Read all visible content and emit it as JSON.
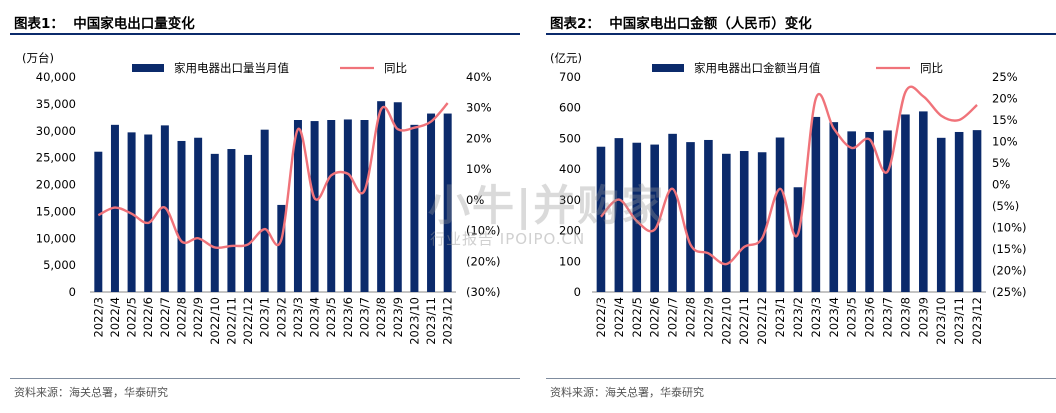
{
  "panels": [
    {
      "title": "图表1：  中国家电出口量变化",
      "source": "资料来源：海关总署，华泰研究"
    },
    {
      "title": "图表2：  中国家电出口金额（人民币）变化",
      "source": "资料来源：海关总署，华泰研究"
    }
  ],
  "watermark": {
    "logo": "小牛|并购家",
    "sub": "行业报告 IPOIPO.CN"
  },
  "colors": {
    "bar": "#0b2a6b",
    "line": "#f0737a"
  },
  "chart_data": [
    {
      "type": "bar",
      "title": "",
      "unit_label": "(万台)",
      "categories": [
        "2022/3",
        "2022/4",
        "2022/5",
        "2022/6",
        "2022/7",
        "2022/8",
        "2022/9",
        "2022/10",
        "2022/11",
        "2022/12",
        "2023/1",
        "2023/2",
        "2023/3",
        "2023/4",
        "2023/5",
        "2023/6",
        "2023/7",
        "2023/8",
        "2023/9",
        "2023/10",
        "2023/11",
        "2023/12"
      ],
      "series": [
        {
          "name": "家用电器出口量当月值",
          "type": "bar",
          "axis": "left",
          "values": [
            26100,
            31100,
            29700,
            29300,
            31000,
            28100,
            28700,
            25700,
            26600,
            25500,
            30200,
            16200,
            32000,
            31800,
            32000,
            32100,
            32000,
            35500,
            35300,
            31100,
            33200,
            33200
          ]
        },
        {
          "name": "同比",
          "type": "line",
          "axis": "right",
          "values": [
            -5.0,
            -2.5,
            -4.5,
            -7.5,
            -2.5,
            -13.5,
            -12.5,
            -15.5,
            -15.0,
            -14.5,
            -9.5,
            -13.0,
            23.0,
            0.5,
            8.0,
            8.5,
            3.0,
            29.5,
            23.0,
            23.5,
            25.5,
            31.5
          ]
        }
      ],
      "ylim_left": [
        0,
        40000
      ],
      "ylim_right": [
        -30,
        40
      ],
      "yticks_left": [
        "0",
        "5,000",
        "10,000",
        "15,000",
        "20,000",
        "25,000",
        "30,000",
        "35,000",
        "40,000"
      ],
      "yticks_right": [
        "(30%)",
        "(20%)",
        "(10%)",
        "0%",
        "10%",
        "20%",
        "30%",
        "40%"
      ],
      "legend_position": "top"
    },
    {
      "type": "bar",
      "title": "",
      "unit_label": "(亿元)",
      "categories": [
        "2022/3",
        "2022/4",
        "2022/5",
        "2022/6",
        "2022/7",
        "2022/8",
        "2022/9",
        "2022/10",
        "2022/11",
        "2022/12",
        "2023/1",
        "2023/2",
        "2023/3",
        "2023/4",
        "2023/5",
        "2023/6",
        "2023/7",
        "2023/8",
        "2023/9",
        "2023/10",
        "2023/11",
        "2023/12"
      ],
      "series": [
        {
          "name": "家用电器出口金额当月值",
          "type": "bar",
          "axis": "left",
          "values": [
            473,
            501,
            486,
            480,
            515,
            488,
            495,
            450,
            459,
            455,
            503,
            341,
            570,
            553,
            523,
            521,
            526,
            578,
            588,
            502,
            521,
            527
          ]
        },
        {
          "name": "同比",
          "type": "line",
          "axis": "right",
          "values": [
            -7.5,
            -3.5,
            -8.5,
            -10.5,
            -1.0,
            -14.0,
            -16.0,
            -18.5,
            -14.5,
            -12.5,
            -1.0,
            -11.5,
            20.0,
            13.0,
            8.5,
            10.5,
            3.0,
            21.5,
            20.5,
            16.0,
            15.0,
            18.5
          ]
        }
      ],
      "ylim_left": [
        0,
        700
      ],
      "ylim_right": [
        -25,
        25
      ],
      "yticks_left": [
        "0",
        "100",
        "200",
        "300",
        "400",
        "500",
        "600",
        "700"
      ],
      "yticks_right": [
        "(25%)",
        "(20%)",
        "(15%)",
        "(10%)",
        "(5%)",
        "0%",
        "5%",
        "10%",
        "15%",
        "20%",
        "25%"
      ],
      "legend_position": "top"
    }
  ]
}
